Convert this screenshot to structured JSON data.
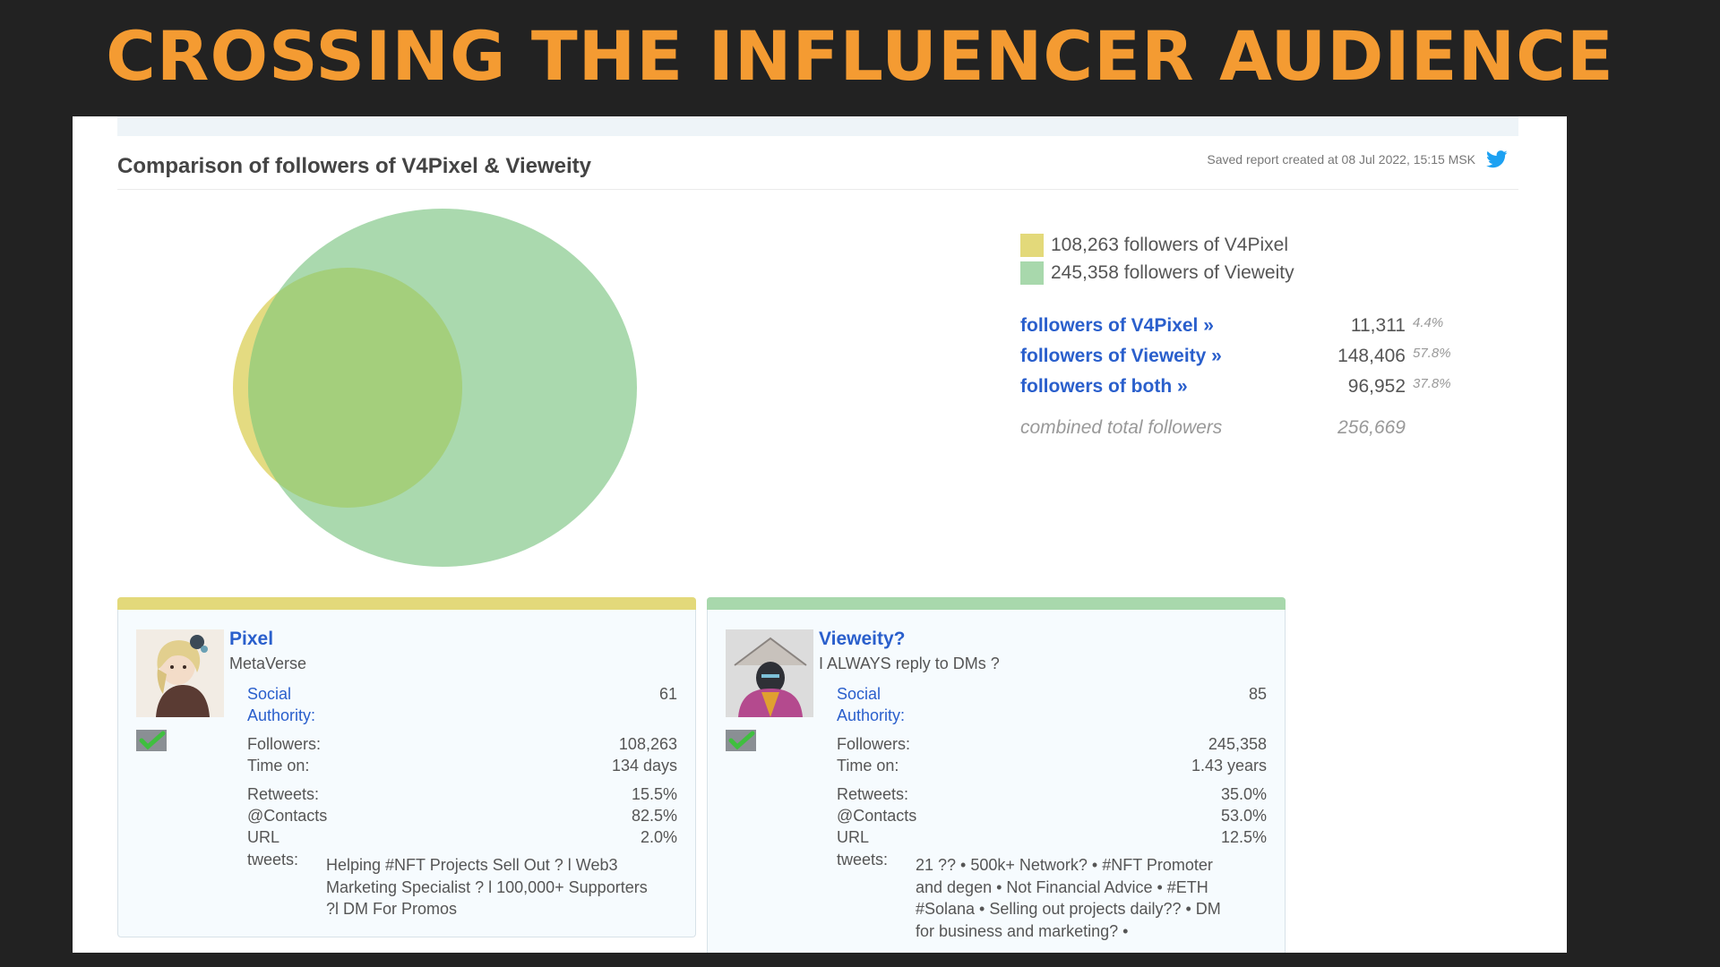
{
  "slide": {
    "title": "CROSSING THE INFLUENCER AUDIENCE"
  },
  "report": {
    "title": "Comparison of followers of V4Pixel & Vieweity",
    "saved_note": "Saved report created at 08 Jul 2022, 15:15 MSK",
    "icon": "twitter-bird-icon"
  },
  "colors": {
    "v4pixel": "#e3d97a",
    "vieweity": "#a8d8ac",
    "overlap": "#a4cf7c",
    "accent": "#f49b32",
    "link": "#2a5fcc"
  },
  "legend": [
    {
      "label": "108,263 followers of V4Pixel",
      "color": "#e3d97a"
    },
    {
      "label": "245,358 followers of Vieweity",
      "color": "#a8d8ac"
    }
  ],
  "stats": [
    {
      "label": "followers of V4Pixel »",
      "count": "11,311",
      "pct": "4.4%"
    },
    {
      "label": "followers of Vieweity »",
      "count": "148,406",
      "pct": "57.8%"
    },
    {
      "label": "followers of both »",
      "count": "96,952",
      "pct": "37.8%"
    }
  ],
  "total": {
    "label": "combined total followers",
    "count": "256,669"
  },
  "cards": [
    {
      "name": "Pixel",
      "subtitle": "MetaVerse",
      "social_authority_label": "Social Authority:",
      "social_authority": "61",
      "followers_label": "Followers:",
      "followers": "108,263",
      "time_on_label": "Time on:",
      "time_on": "134 days",
      "retweets_label": "Retweets:",
      "retweets": "15.5%",
      "contacts_label": "@Contacts",
      "contacts": "82.5%",
      "url_label": "URL",
      "url": "2.0%",
      "tweets_label": "tweets:",
      "bio": "Helping #NFT Projects Sell Out ? l Web3 Marketing Specialist ? l 100,000+ Supporters ?l DM For Promos",
      "bar_color": "#e3d97a"
    },
    {
      "name": "Vieweity?",
      "subtitle": "I ALWAYS reply to DMs ?",
      "social_authority_label": "Social Authority:",
      "social_authority": "85",
      "followers_label": "Followers:",
      "followers": "245,358",
      "time_on_label": "Time on:",
      "time_on": "1.43 years",
      "retweets_label": "Retweets:",
      "retweets": "35.0%",
      "contacts_label": "@Contacts",
      "contacts": "53.0%",
      "url_label": "URL",
      "url": "12.5%",
      "tweets_label": "tweets:",
      "bio": "21 ?? • 500k+ Network? • #NFT Promoter and degen • Not Financial Advice • #ETH #Solana • Selling out projects daily?? • DM for business and marketing? •",
      "bar_color": "#a8d8ac"
    }
  ]
}
